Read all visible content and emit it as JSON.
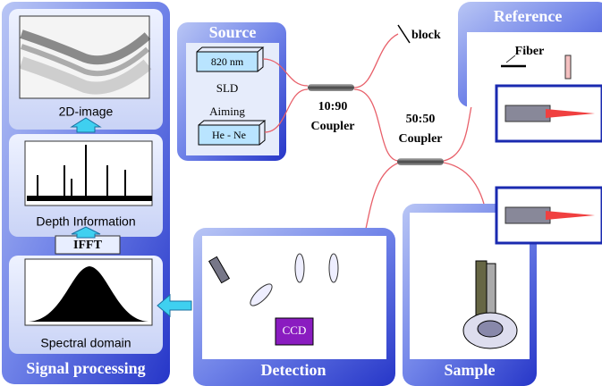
{
  "source": {
    "title": "Source",
    "laser_1": "820 nm",
    "sld": "SLD",
    "aiming": "Aiming",
    "laser_2": "He - Ne"
  },
  "coupler_1": {
    "ratio": "10:90",
    "label": "Coupler"
  },
  "block": "block",
  "reference": {
    "title": "Reference",
    "fiber": "Fiber"
  },
  "coupler_2": {
    "ratio": "50:50",
    "label": "Coupler"
  },
  "detection": {
    "title": "Detection",
    "ccd": "CCD"
  },
  "sample": {
    "title": "Sample"
  },
  "signal_processing": {
    "title": "Signal processing",
    "image": "2D-image",
    "depth": "Depth Information",
    "ifft": "IFFT",
    "spectral": "Spectral domain"
  }
}
